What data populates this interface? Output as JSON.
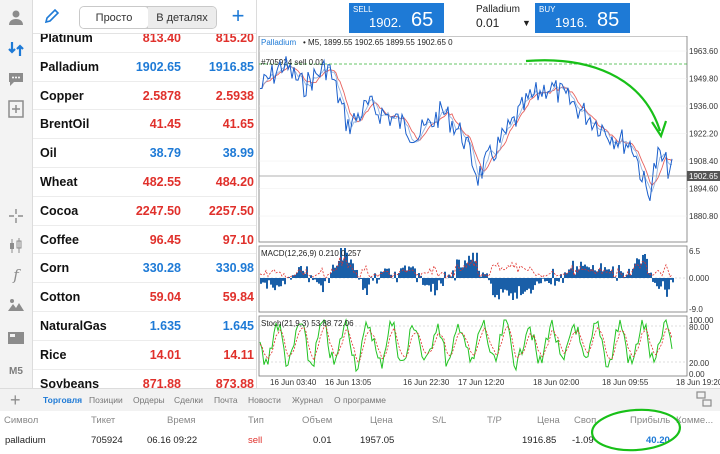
{
  "symbols": {
    "segment": {
      "simple": "Просто",
      "detailed": "В деталях"
    },
    "items": [
      {
        "name": "Platinum",
        "bid": "813.40",
        "ask": "815.20",
        "dir": "down"
      },
      {
        "name": "Palladium",
        "bid": "1902.65",
        "ask": "1916.85",
        "dir": "up"
      },
      {
        "name": "Copper",
        "bid": "2.5878",
        "ask": "2.5938",
        "dir": "down"
      },
      {
        "name": "BrentOil",
        "bid": "41.45",
        "ask": "41.65",
        "dir": "down"
      },
      {
        "name": "Oil",
        "bid": "38.79",
        "ask": "38.99",
        "dir": "up"
      },
      {
        "name": "Wheat",
        "bid": "482.55",
        "ask": "484.20",
        "dir": "down"
      },
      {
        "name": "Cocoa",
        "bid": "2247.50",
        "ask": "2257.50",
        "dir": "down"
      },
      {
        "name": "Coffee",
        "bid": "96.45",
        "ask": "97.10",
        "dir": "down"
      },
      {
        "name": "Corn",
        "bid": "330.28",
        "ask": "330.98",
        "dir": "up"
      },
      {
        "name": "Cotton",
        "bid": "59.04",
        "ask": "59.84",
        "dir": "down"
      },
      {
        "name": "NaturalGas",
        "bid": "1.635",
        "ask": "1.645",
        "dir": "up"
      },
      {
        "name": "Rice",
        "bid": "14.01",
        "ask": "14.11",
        "dir": "down"
      },
      {
        "name": "Soybeans",
        "bid": "871.88",
        "ask": "873.88",
        "dir": "down"
      }
    ]
  },
  "toolbar": {
    "timeframe": "M5"
  },
  "trade": {
    "sell_label": "SELL",
    "sell_small": "1902.",
    "sell_big": "65",
    "buy_label": "BUY",
    "buy_small": "1916.",
    "buy_big": "85",
    "symbol": "Palladium",
    "volume": "0.01"
  },
  "chart": {
    "header_symbol": "Palladium",
    "header_info": "• M5, 1899.55 1902.65 1899.55 1902.65 0",
    "order_label": "#705924 sell 0.01",
    "price_ticks": [
      "1963.60",
      "1949.80",
      "1936.00",
      "1922.20",
      "1908.40",
      "1894.60",
      "1880.80"
    ],
    "current_price": "1902.65",
    "macd_label": "MACD(12,26,9) 0.210 0.257",
    "macd_ticks": [
      "6.5",
      "0.000",
      "-9.0"
    ],
    "stoch_label": "Stoch(21,9,3) 53.88 72.06",
    "stoch_ticks": [
      "100.00",
      "80.00",
      "20.00",
      "0.00"
    ],
    "time_ticks": [
      "16 Jun 03:40",
      "16 Jun 13:05",
      "16 Jun 22:30",
      "17 Jun 12:20",
      "18 Jun 02:00",
      "18 Jun 09:55",
      "18 Jun 19:20"
    ]
  },
  "colors": {
    "accent": "#1e7ad6",
    "down": "#e0302b",
    "macd": "#1a5fa8",
    "stoch_main": "#22c322",
    "stoch_signal": "#e0302b",
    "annotation": "#18c018"
  },
  "bottom": {
    "tabs": [
      "Торговля",
      "Позиции",
      "Ордеры",
      "Сделки",
      "Почта",
      "Новости",
      "Журнал",
      "О программе"
    ],
    "columns": [
      "Символ",
      "Тикет",
      "Время",
      "Тип",
      "Объем",
      "Цена",
      "S/L",
      "T/P",
      "Цена",
      "Своп",
      "Прибыль",
      "Коммe..."
    ],
    "position": {
      "symbol": "palladium",
      "ticket": "705924",
      "time": "06.16 09:22",
      "type": "sell",
      "volume": "0.01",
      "price": "1957.05",
      "current": "1916.85",
      "swap": "-1.09",
      "profit": "40.20"
    }
  }
}
